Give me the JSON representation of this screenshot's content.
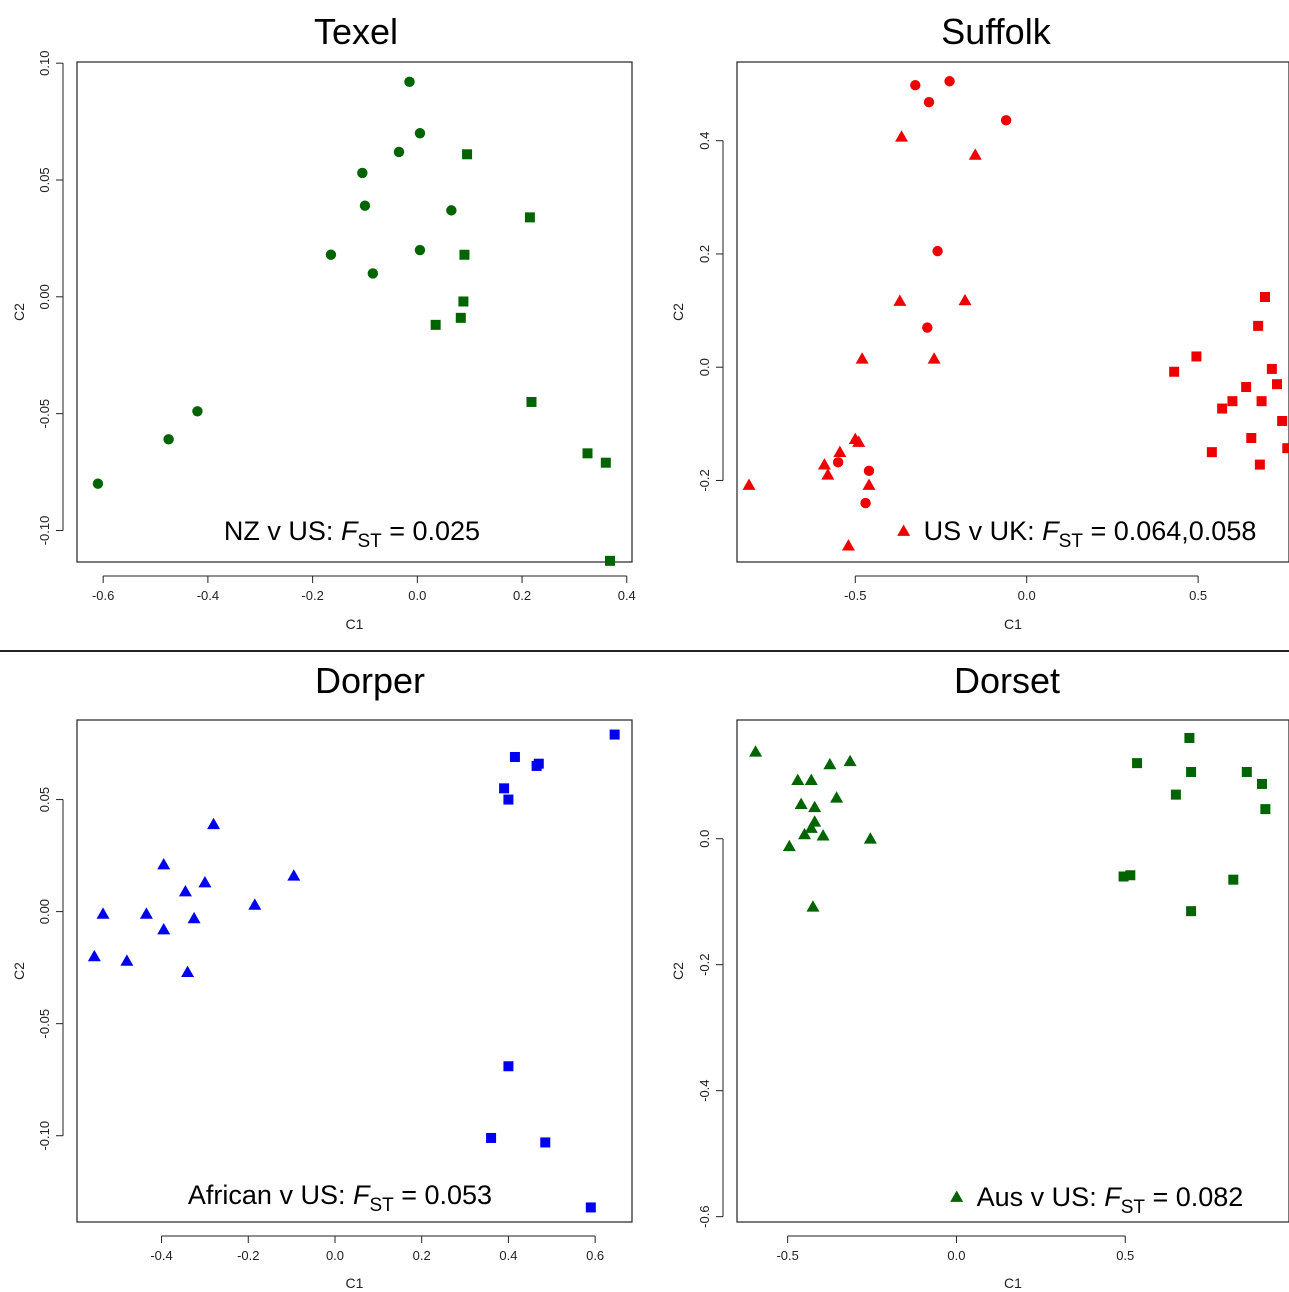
{
  "chart_data": [
    {
      "type": "scatter",
      "title": "Texel",
      "xlabel": "C1",
      "ylabel": "C2",
      "xlim": [
        -0.65,
        0.41
      ],
      "ylim": [
        -0.1135,
        0.1005
      ],
      "xticks": [
        "-0.6",
        "-0.4",
        "-0.2",
        "0.0",
        "0.2",
        "0.4"
      ],
      "xtick_values": [
        -0.6,
        -0.4,
        -0.2,
        0.0,
        0.2,
        0.4
      ],
      "yticks": [
        "-0.10",
        "-0.05",
        "0.00",
        "0.05",
        "0.10"
      ],
      "ytick_values": [
        -0.1,
        -0.05,
        0.0,
        0.05,
        0.1
      ],
      "color": "#006400",
      "annotation": {
        "prefix": "NZ v US: ",
        "f": "F",
        "sub": "ST",
        "suffix": " = 0.025",
        "marker": ""
      },
      "series": [
        {
          "marker": "circle",
          "points": [
            [
              -0.015,
              0.092
            ],
            [
              0.005,
              0.07
            ],
            [
              -0.035,
              0.062
            ],
            [
              -0.105,
              0.053
            ],
            [
              -0.1,
              0.039
            ],
            [
              0.065,
              0.037
            ],
            [
              0.005,
              0.02
            ],
            [
              -0.165,
              0.018
            ],
            [
              -0.085,
              0.01
            ],
            [
              -0.42,
              -0.049
            ],
            [
              -0.475,
              -0.061
            ],
            [
              -0.61,
              -0.08
            ]
          ]
        },
        {
          "marker": "square",
          "points": [
            [
              0.095,
              0.061
            ],
            [
              0.215,
              0.034
            ],
            [
              0.09,
              0.018
            ],
            [
              0.088,
              -0.002
            ],
            [
              0.083,
              -0.009
            ],
            [
              0.035,
              -0.012
            ],
            [
              0.218,
              -0.045
            ],
            [
              0.325,
              -0.067
            ],
            [
              0.36,
              -0.071
            ],
            [
              0.368,
              -0.113
            ]
          ]
        }
      ]
    },
    {
      "type": "scatter",
      "title": "Suffolk",
      "xlabel": "C1",
      "ylabel": "C2",
      "xlim": [
        -0.845,
        0.765
      ],
      "ylim": [
        -0.344,
        0.539
      ],
      "xticks": [
        "-0.5",
        "0.0",
        "0.5"
      ],
      "xtick_values": [
        -0.5,
        0.0,
        0.5
      ],
      "yticks": [
        "-0.2",
        "0.0",
        "0.2",
        "0.4"
      ],
      "ytick_values": [
        -0.2,
        0.0,
        0.2,
        0.4
      ],
      "color": "#ee0000",
      "annotation": {
        "prefix": "US v UK: ",
        "f": "F",
        "sub": "ST",
        "suffix": " = 0.064,0.058",
        "marker": "triangle"
      },
      "series": [
        {
          "marker": "circle",
          "points": [
            [
              -0.225,
              0.505
            ],
            [
              -0.325,
              0.498
            ],
            [
              -0.285,
              0.468
            ],
            [
              -0.06,
              0.436
            ],
            [
              -0.26,
              0.205
            ],
            [
              -0.29,
              0.07
            ],
            [
              -0.55,
              -0.168
            ],
            [
              -0.46,
              -0.183
            ],
            [
              -0.47,
              -0.24
            ]
          ]
        },
        {
          "marker": "triangle",
          "points": [
            [
              -0.365,
              0.407
            ],
            [
              -0.15,
              0.375
            ],
            [
              -0.37,
              0.117
            ],
            [
              -0.18,
              0.118
            ],
            [
              -0.48,
              0.015
            ],
            [
              -0.27,
              0.015
            ],
            [
              -0.5,
              -0.127
            ],
            [
              -0.49,
              -0.132
            ],
            [
              -0.545,
              -0.15
            ],
            [
              -0.59,
              -0.172
            ],
            [
              -0.58,
              -0.19
            ],
            [
              -0.46,
              -0.208
            ],
            [
              -0.81,
              -0.208
            ],
            [
              -0.52,
              -0.315
            ]
          ]
        },
        {
          "marker": "square",
          "points": [
            [
              0.695,
              0.124
            ],
            [
              0.675,
              0.073
            ],
            [
              0.495,
              0.019
            ],
            [
              0.43,
              -0.008
            ],
            [
              0.715,
              -0.003
            ],
            [
              0.73,
              -0.03
            ],
            [
              0.64,
              -0.035
            ],
            [
              0.6,
              -0.06
            ],
            [
              0.685,
              -0.06
            ],
            [
              0.57,
              -0.073
            ],
            [
              0.745,
              -0.095
            ],
            [
              0.655,
              -0.125
            ],
            [
              0.76,
              -0.143
            ],
            [
              0.54,
              -0.15
            ],
            [
              0.68,
              -0.172
            ]
          ]
        }
      ]
    },
    {
      "type": "scatter",
      "title": "Dorper",
      "xlabel": "C1",
      "ylabel": "C2",
      "xlim": [
        -0.595,
        0.685
      ],
      "ylim": [
        -0.1385,
        0.0855
      ],
      "xticks": [
        "-0.4",
        "-0.2",
        "0.0",
        "0.2",
        "0.4",
        "0.6"
      ],
      "xtick_values": [
        -0.4,
        -0.2,
        0.0,
        0.2,
        0.4,
        0.6
      ],
      "yticks": [
        "-0.10",
        "-0.05",
        "0.00",
        "0.05"
      ],
      "ytick_values": [
        -0.1,
        -0.05,
        0.0,
        0.05
      ],
      "color": "#0000ee",
      "annotation": {
        "prefix": "African v US: ",
        "f": "F",
        "sub": "ST",
        "suffix": " = 0.053",
        "marker": ""
      },
      "series": [
        {
          "marker": "square",
          "points": [
            [
              0.645,
              0.079
            ],
            [
              0.415,
              0.069
            ],
            [
              0.47,
              0.066
            ],
            [
              0.465,
              0.065
            ],
            [
              0.39,
              0.055
            ],
            [
              0.4,
              0.05
            ],
            [
              0.4,
              -0.069
            ],
            [
              0.36,
              -0.101
            ],
            [
              0.485,
              -0.103
            ],
            [
              0.59,
              -0.132
            ]
          ]
        },
        {
          "marker": "triangle",
          "points": [
            [
              -0.28,
              0.039
            ],
            [
              -0.395,
              0.021
            ],
            [
              -0.095,
              0.016
            ],
            [
              -0.3,
              0.013
            ],
            [
              -0.345,
              0.009
            ],
            [
              -0.185,
              0.003
            ],
            [
              -0.535,
              -0.001
            ],
            [
              -0.435,
              -0.001
            ],
            [
              -0.325,
              -0.003
            ],
            [
              -0.395,
              -0.008
            ],
            [
              -0.555,
              -0.02
            ],
            [
              -0.48,
              -0.022
            ],
            [
              -0.34,
              -0.027
            ]
          ]
        }
      ]
    },
    {
      "type": "scatter",
      "title": "Dorset",
      "xlabel": "C1",
      "ylabel": "C2",
      "xlim": [
        -0.65,
        0.985
      ],
      "ylim": [
        -0.6085,
        0.1885
      ],
      "xticks": [
        "-0.5",
        "0.0",
        "0.5"
      ],
      "xtick_values": [
        -0.5,
        0.0,
        0.5
      ],
      "yticks": [
        "-0.6",
        "-0.4",
        "-0.2",
        "0.0"
      ],
      "ytick_values": [
        -0.6,
        -0.4,
        -0.2,
        0.0
      ],
      "color": "#006400",
      "annotation": {
        "prefix": "Aus v US: ",
        "f": "F",
        "sub": "ST",
        "suffix": " = 0.082",
        "marker": "triangle"
      },
      "series": [
        {
          "marker": "triangle",
          "points": [
            [
              -0.595,
              0.138
            ],
            [
              -0.315,
              0.123
            ],
            [
              -0.375,
              0.118
            ],
            [
              -0.47,
              0.093
            ],
            [
              -0.43,
              0.093
            ],
            [
              -0.355,
              0.065
            ],
            [
              -0.46,
              0.055
            ],
            [
              -0.42,
              0.05
            ],
            [
              -0.42,
              0.027
            ],
            [
              -0.43,
              0.017
            ],
            [
              -0.45,
              0.007
            ],
            [
              -0.395,
              0.005
            ],
            [
              -0.255,
              0.0
            ],
            [
              -0.495,
              -0.012
            ],
            [
              -0.425,
              -0.108
            ]
          ]
        },
        {
          "marker": "square",
          "points": [
            [
              0.69,
              0.16
            ],
            [
              0.535,
              0.12
            ],
            [
              0.695,
              0.106
            ],
            [
              0.86,
              0.106
            ],
            [
              0.905,
              0.087
            ],
            [
              0.65,
              0.07
            ],
            [
              0.915,
              0.047
            ],
            [
              0.495,
              -0.06
            ],
            [
              0.515,
              -0.058
            ],
            [
              0.82,
              -0.065
            ],
            [
              0.695,
              -0.115
            ]
          ]
        }
      ]
    }
  ]
}
